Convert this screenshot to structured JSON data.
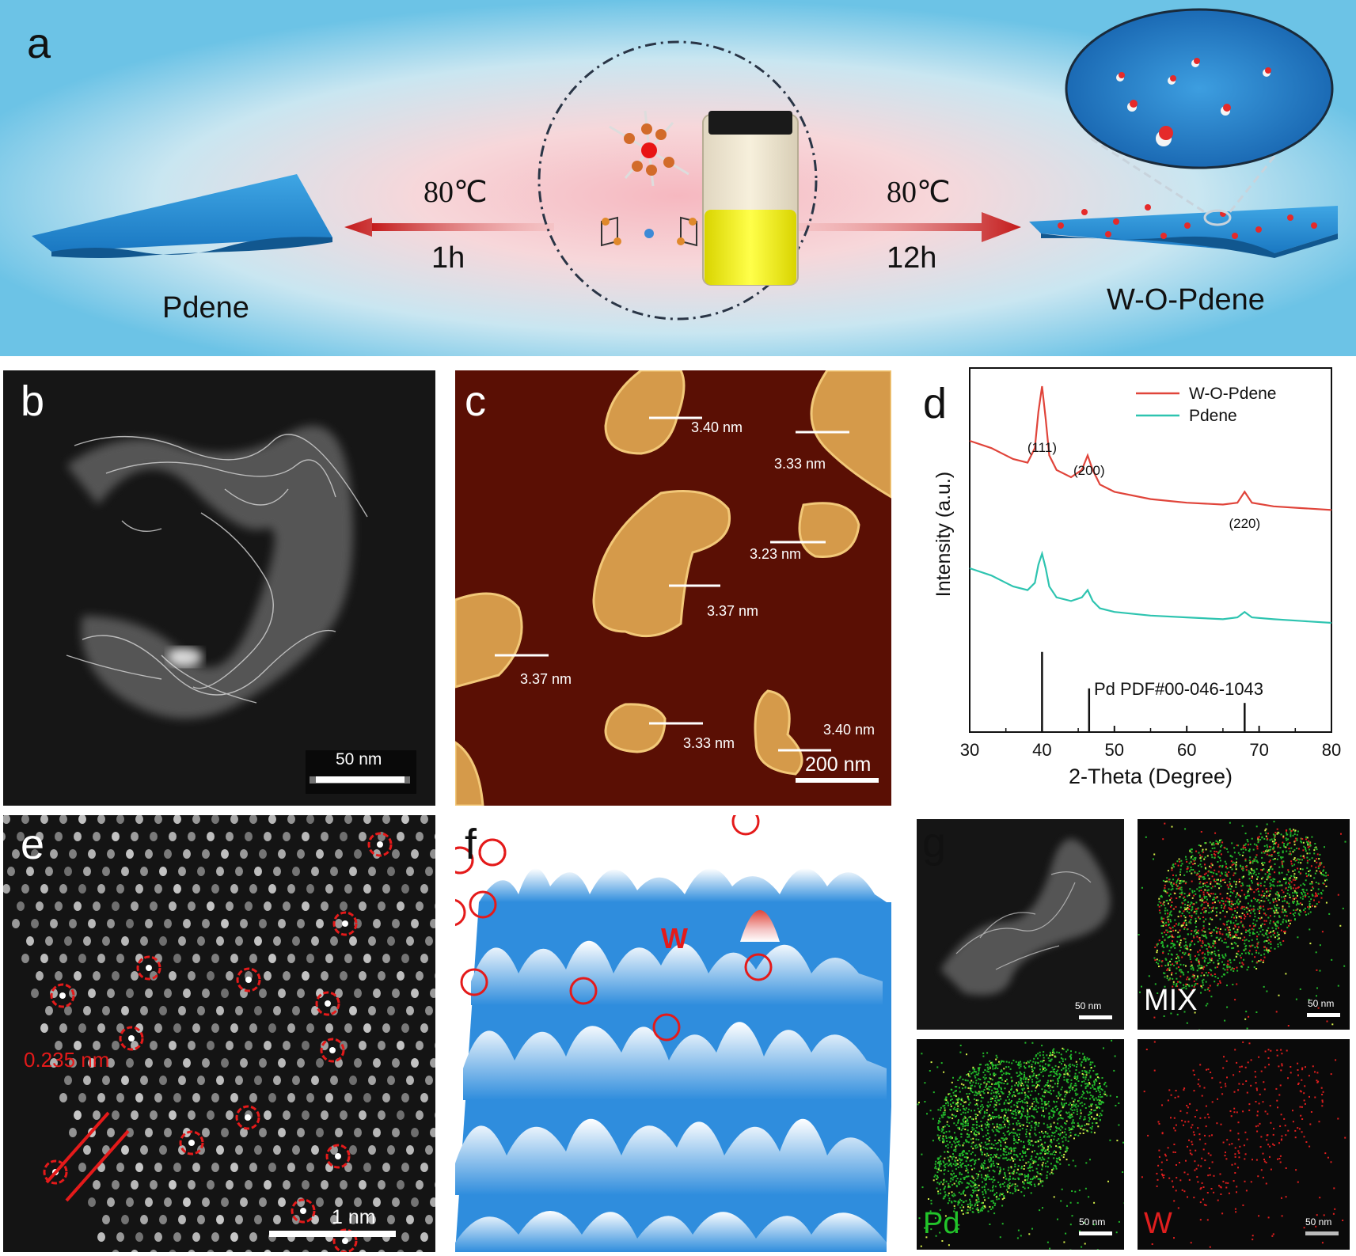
{
  "panels": {
    "a": {
      "label": "a",
      "left_material": "Pdene",
      "right_material": "W-O-Pdene",
      "left_temp": "80℃",
      "left_time": "1h",
      "right_temp": "80℃",
      "right_time": "12h"
    },
    "b": {
      "label": "b",
      "scale": "50 nm"
    },
    "c": {
      "label": "c",
      "scale": "200 nm",
      "heights": [
        "3.40 nm",
        "3.33 nm",
        "3.23 nm",
        "3.37 nm",
        "3.37 nm",
        "3.33 nm",
        "3.40 nm"
      ]
    },
    "d": {
      "label": "d",
      "reference": "Pd PDF#00-046-1043"
    },
    "e": {
      "label": "e",
      "spacing": "0.235 nm",
      "scale": "1 nm"
    },
    "f": {
      "label": "f",
      "element": "W"
    },
    "g": {
      "label": "g",
      "maps": [
        "MIX",
        "Pd",
        "W"
      ],
      "scale": "50 nm"
    }
  },
  "chart_data": {
    "type": "line",
    "xlabel": "2-Theta (Degree)",
    "ylabel": "Intensity (a.u.)",
    "xlim": [
      30,
      80
    ],
    "xticks": [
      30,
      40,
      50,
      60,
      70,
      80
    ],
    "legend_position": "top-right",
    "series": [
      {
        "name": "W-O-Pdene",
        "color": "#e0443a",
        "x": [
          30,
          33,
          36,
          38,
          39,
          39.5,
          40,
          40.5,
          41,
          42,
          44,
          45.5,
          46.3,
          47,
          48,
          50,
          55,
          60,
          65,
          67,
          68,
          69,
          72,
          76,
          80
        ],
        "y": [
          0.8,
          0.78,
          0.75,
          0.74,
          0.78,
          0.88,
          0.95,
          0.86,
          0.76,
          0.72,
          0.7,
          0.72,
          0.76,
          0.72,
          0.68,
          0.66,
          0.64,
          0.63,
          0.625,
          0.63,
          0.66,
          0.63,
          0.62,
          0.615,
          0.61
        ]
      },
      {
        "name": "Pdene",
        "color": "#2ec4b0",
        "x": [
          30,
          33,
          36,
          38,
          39,
          39.5,
          40,
          40.5,
          41,
          42,
          44,
          45.5,
          46.3,
          47,
          48,
          50,
          55,
          60,
          65,
          67,
          68,
          69,
          72,
          76,
          80
        ],
        "y": [
          0.45,
          0.43,
          0.4,
          0.39,
          0.41,
          0.46,
          0.49,
          0.45,
          0.4,
          0.37,
          0.36,
          0.37,
          0.39,
          0.36,
          0.34,
          0.33,
          0.32,
          0.315,
          0.31,
          0.315,
          0.33,
          0.315,
          0.31,
          0.305,
          0.3
        ]
      }
    ],
    "annotations": [
      {
        "text": "(111)",
        "x": 40
      },
      {
        "text": "(200)",
        "x": 46.5
      },
      {
        "text": "(220)",
        "x": 68
      }
    ],
    "reference_lines": [
      {
        "x": 40,
        "h": 0.22
      },
      {
        "x": 46.5,
        "h": 0.12
      },
      {
        "x": 68,
        "h": 0.08
      }
    ]
  }
}
